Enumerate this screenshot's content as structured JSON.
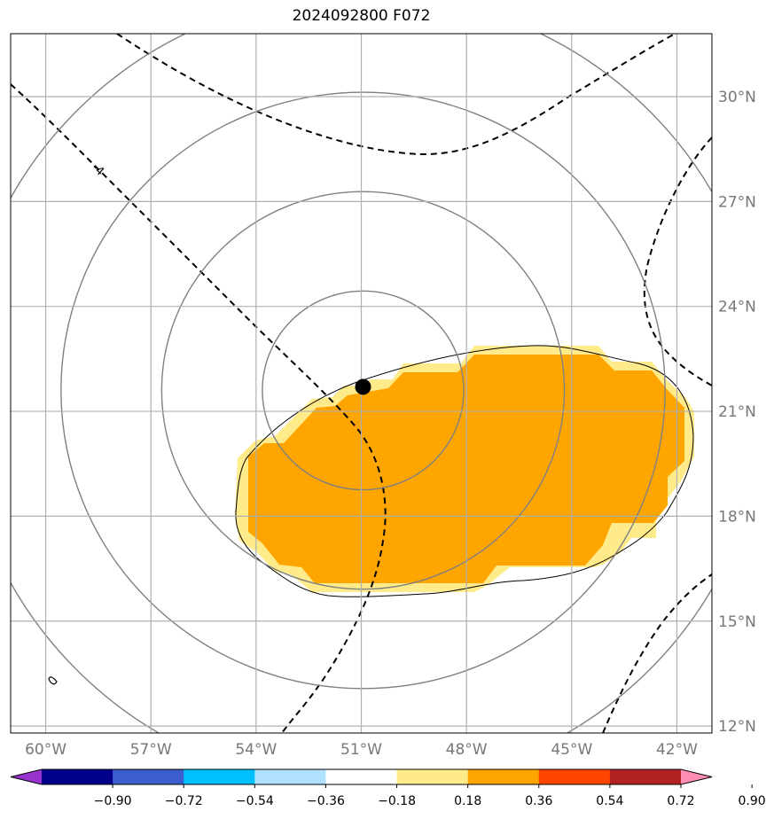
{
  "title": "2024092800 F072",
  "map": {
    "lon_range": [
      -61,
      -41
    ],
    "lat_range": [
      11.8,
      31.8
    ],
    "lon_ticks": [
      -60,
      -57,
      -54,
      -51,
      -48,
      -45,
      -42
    ],
    "lat_ticks": [
      12,
      15,
      18,
      21,
      24,
      27,
      30
    ],
    "lon_labels": [
      "60°W",
      "57°W",
      "54°W",
      "51°W",
      "48°W",
      "45°W",
      "42°W"
    ],
    "lat_labels": [
      "12°N",
      "15°N",
      "18°N",
      "21°N",
      "24°N",
      "27°N",
      "30°N"
    ],
    "grid": true,
    "storm_center": {
      "lon": -50.95,
      "lat": 21.7
    },
    "range_rings_radii_deg": [
      2.9,
      5.8,
      8.7,
      11.6
    ],
    "contour_label": "-4",
    "colors": {
      "grid": "#b0b0b0",
      "rings": "#808080",
      "fill_0_18_0_36": "#ffeb8a",
      "fill_0_36_0_54": "#ffa500",
      "contour": "#000000"
    }
  },
  "colorbar": {
    "labels": [
      "−0.90",
      "−0.72",
      "−0.54",
      "−0.36",
      "−0.18",
      "0.18",
      "0.36",
      "0.54",
      "0.72",
      "0.90"
    ],
    "values": [
      -0.9,
      -0.72,
      -0.54,
      -0.36,
      -0.18,
      0.18,
      0.36,
      0.54,
      0.72,
      0.9
    ],
    "colors": [
      "#9932cc",
      "#00008b",
      "#3a5fcd",
      "#00bfff",
      "#b0e2ff",
      "#ffffff",
      "#ffeb8a",
      "#ffa500",
      "#ff4500",
      "#b22222",
      "#ff8cb4"
    ]
  }
}
